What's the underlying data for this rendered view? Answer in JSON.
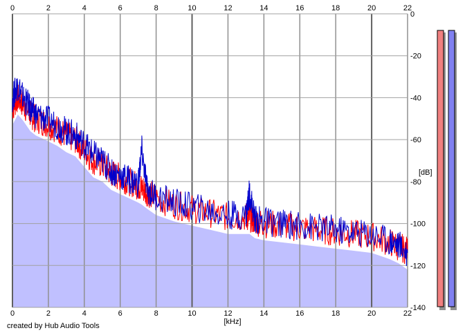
{
  "credit": "created by Hub Audio Tools",
  "chart_data": {
    "type": "area",
    "xlabel": "[kHz]",
    "ylabel": "[dB]",
    "xlim": [
      0,
      22
    ],
    "ylim": [
      -140,
      0
    ],
    "xticks": [
      0,
      2,
      4,
      6,
      8,
      10,
      12,
      14,
      16,
      18,
      20,
      22
    ],
    "yticks": [
      0,
      -20,
      -40,
      -60,
      -80,
      -100,
      -120,
      -140
    ],
    "xtick_labels": [
      "0",
      "2",
      "4",
      "6",
      "8",
      "10",
      "12",
      "14",
      "16",
      "18",
      "20",
      "22"
    ],
    "ytick_labels": [
      "0",
      "-20",
      "-40",
      "-60",
      "-80",
      "-100",
      "-120",
      "-140"
    ],
    "grid": true,
    "fill_color": "#c0c0ff",
    "series": [
      {
        "color": "#ff0000",
        "x": [
          0,
          0.3,
          0.6,
          1.0,
          1.3,
          1.8,
          2.5,
          3.0,
          3.5,
          4.0,
          4.5,
          5.0,
          5.5,
          6.0,
          6.5,
          7.0,
          7.2,
          7.5,
          8.0,
          9.0,
          10.0,
          11.0,
          12.0,
          13.0,
          13.2,
          13.5,
          14.0,
          15.0,
          16.0,
          17.0,
          18.0,
          19.0,
          20.0,
          21.0,
          21.5,
          22.0
        ],
        "y": [
          -45,
          -40,
          -43,
          -48,
          -50,
          -52,
          -55,
          -58,
          -60,
          -65,
          -70,
          -72,
          -76,
          -78,
          -80,
          -82,
          -83,
          -85,
          -88,
          -91,
          -93,
          -95,
          -97,
          -97,
          -97,
          -99,
          -100,
          -101,
          -102,
          -103,
          -104,
          -105,
          -106,
          -109,
          -111,
          -113
        ]
      },
      {
        "color": "#0000cc",
        "x": [
          0,
          0.3,
          0.6,
          1.0,
          1.3,
          1.8,
          2.5,
          3.0,
          3.5,
          4.0,
          4.5,
          5.0,
          5.5,
          6.0,
          6.5,
          7.0,
          7.2,
          7.5,
          8.0,
          9.0,
          10.0,
          11.0,
          12.0,
          13.0,
          13.2,
          13.5,
          14.0,
          15.0,
          16.0,
          17.0,
          18.0,
          19.0,
          20.0,
          21.0,
          21.5,
          22.0
        ],
        "y": [
          -40,
          -34,
          -40,
          -45,
          -48,
          -50,
          -53,
          -56,
          -58,
          -62,
          -67,
          -70,
          -75,
          -77,
          -79,
          -81,
          -65,
          -84,
          -87,
          -90,
          -92,
          -94,
          -96,
          -96,
          -85,
          -98,
          -99,
          -100,
          -101,
          -102,
          -103,
          -104,
          -105,
          -108,
          -110,
          -114
        ]
      }
    ],
    "level_meters": [
      {
        "color": "#f08080"
      },
      {
        "color": "#8080f0"
      }
    ]
  }
}
